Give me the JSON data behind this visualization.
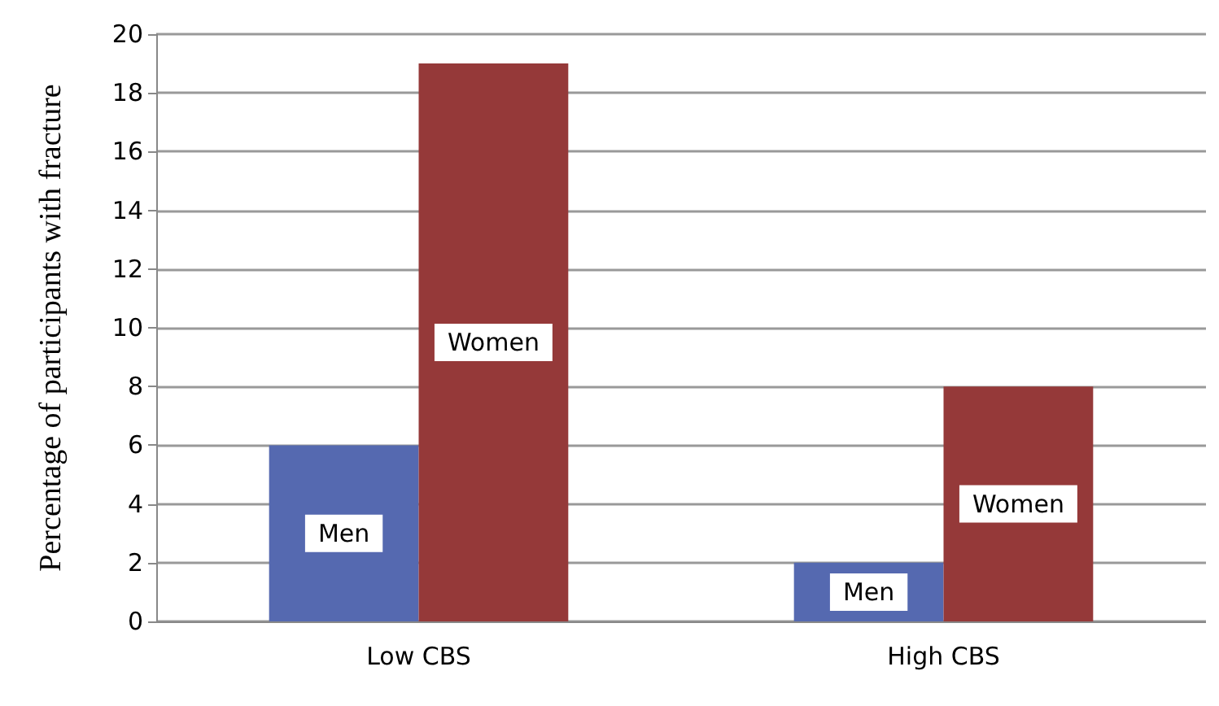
{
  "chart_data": {
    "type": "bar",
    "ylabel": "Percentage of participants with fracture",
    "categories": [
      "Low CBS",
      "High CBS"
    ],
    "series": [
      {
        "name": "Men",
        "color": "#5569b0",
        "values": [
          6,
          2
        ]
      },
      {
        "name": "Women",
        "color": "#953939",
        "values": [
          19,
          8
        ]
      }
    ],
    "ylim": [
      0,
      20
    ],
    "yticks": [
      0,
      2,
      4,
      6,
      8,
      10,
      12,
      14,
      16,
      18,
      20
    ],
    "grid": "y"
  }
}
